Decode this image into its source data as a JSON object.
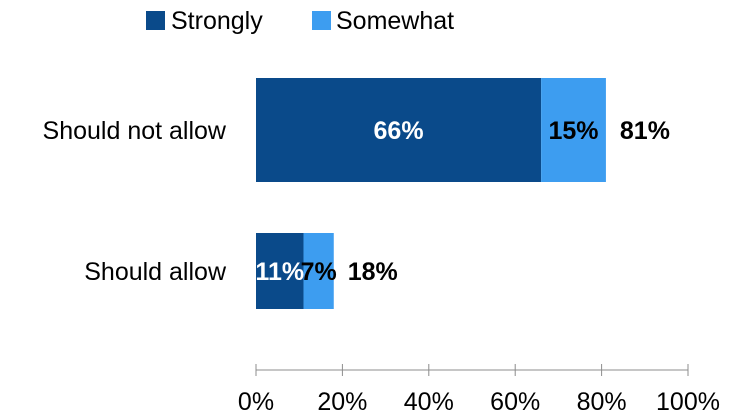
{
  "chart_data": {
    "type": "bar",
    "orientation": "horizontal",
    "stacked": true,
    "categories": [
      "Should not allow",
      "Should allow"
    ],
    "series": [
      {
        "name": "Strongly",
        "values": [
          66,
          11
        ],
        "color": "#0a4a8a",
        "label_color": "#ffffff"
      },
      {
        "name": "Somewhat",
        "values": [
          15,
          7
        ],
        "color": "#3d9df0",
        "label_color": "#000000"
      }
    ],
    "totals": [
      81,
      18
    ],
    "value_suffix": "%",
    "xlim": [
      0,
      100
    ],
    "x_ticks": [
      "0%",
      "20%",
      "40%",
      "60%",
      "80%",
      "100%"
    ],
    "legend_position": "top",
    "grid": false
  }
}
